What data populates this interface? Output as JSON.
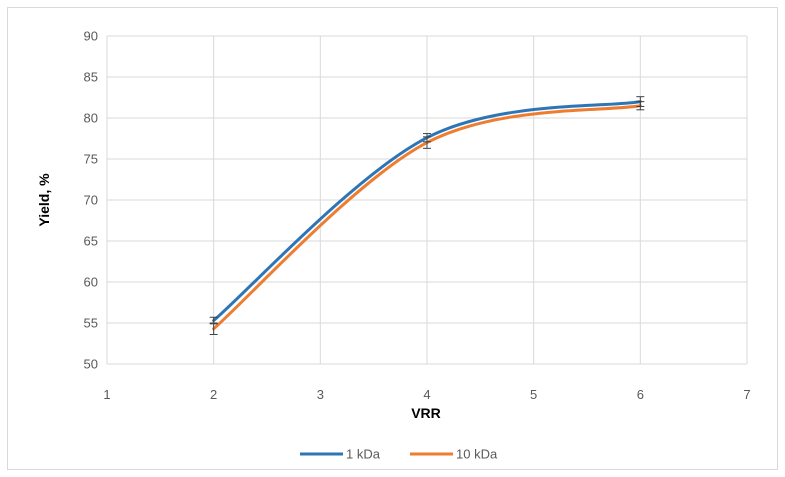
{
  "chart_data": {
    "type": "line",
    "title": "",
    "xlabel": "VRR",
    "ylabel": "Yield, %",
    "xlim": [
      1,
      7
    ],
    "ylim": [
      50,
      90
    ],
    "xticks": [
      1,
      2,
      3,
      4,
      5,
      6,
      7
    ],
    "yticks": [
      50,
      55,
      60,
      65,
      70,
      75,
      80,
      85,
      90
    ],
    "grid": true,
    "smooth": true,
    "legend_position": "bottom",
    "x": [
      2,
      4,
      6
    ],
    "series": [
      {
        "name": "1 kDa",
        "color": "#2e75b6",
        "values": [
          55.3,
          77.6,
          82.0
        ],
        "error": [
          0.4,
          0.5,
          0.6
        ]
      },
      {
        "name": "10 kDa",
        "color": "#ed7d31",
        "values": [
          54.3,
          77.0,
          81.5
        ],
        "error": [
          0.7,
          0.7,
          0.5
        ]
      }
    ]
  }
}
